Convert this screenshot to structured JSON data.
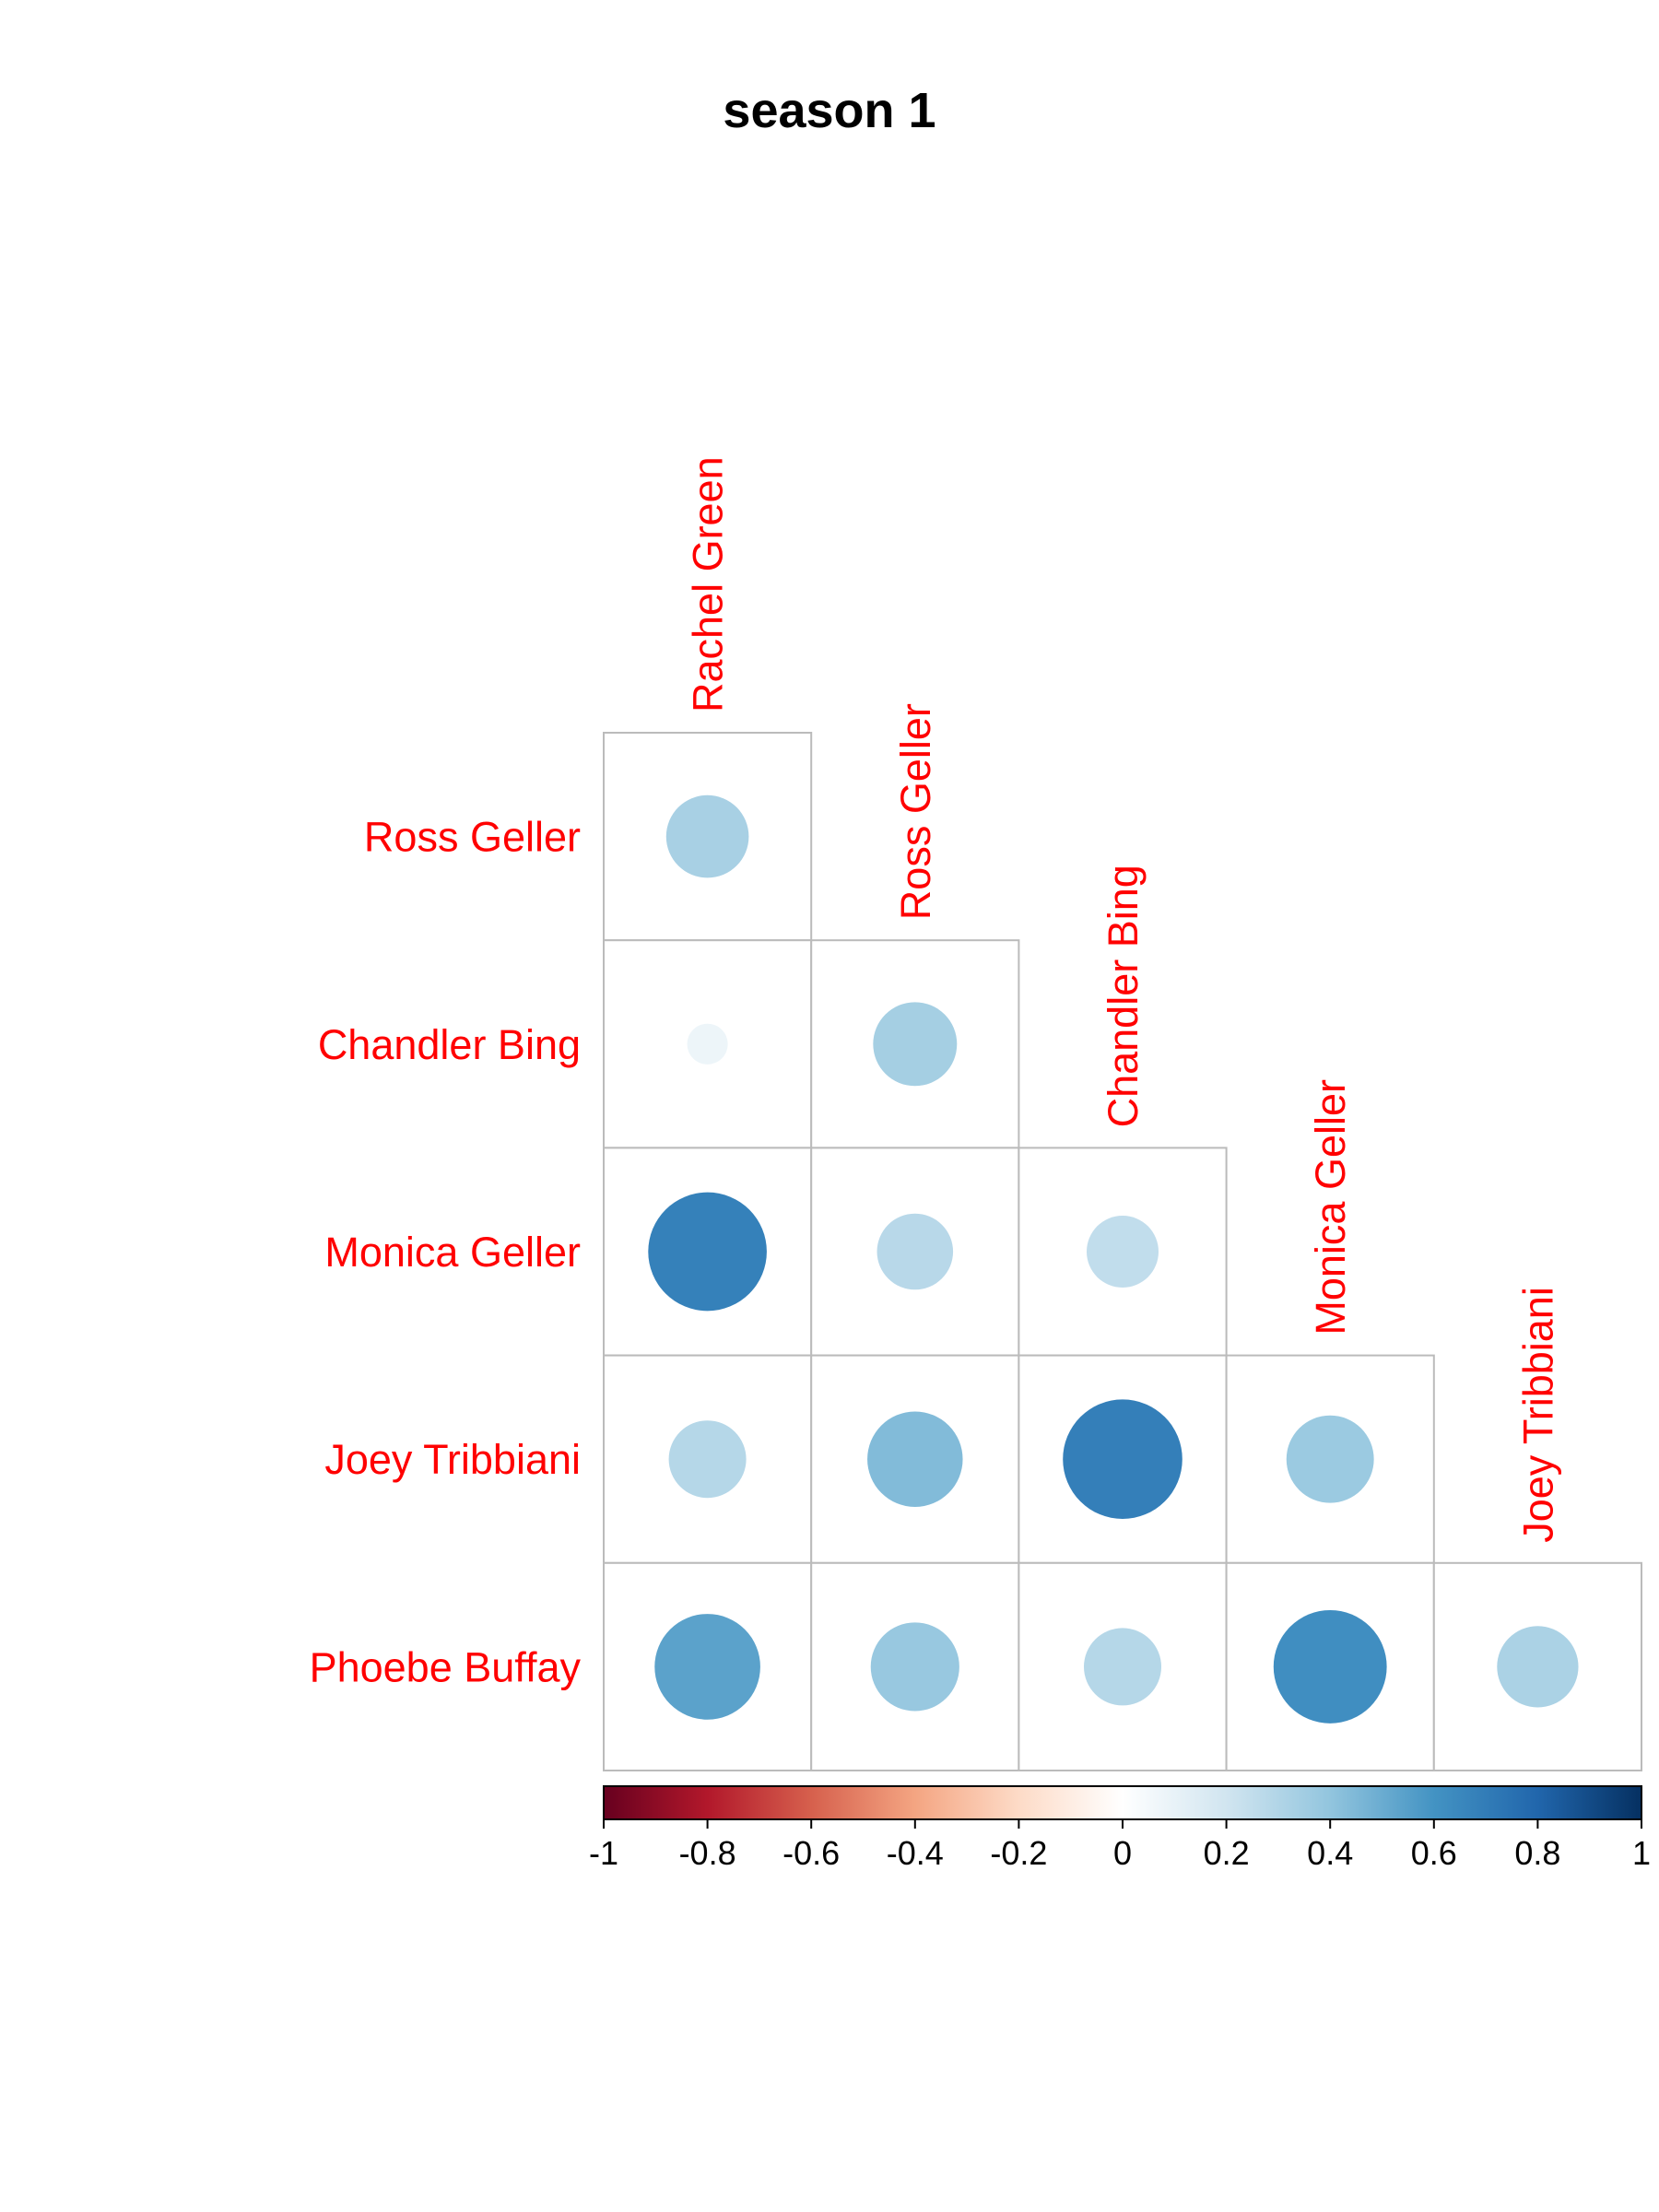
{
  "chart_data": {
    "type": "heatmap",
    "title": "season 1",
    "variables": [
      "Rachel Green",
      "Ross Geller",
      "Chandler Bing",
      "Monica Geller",
      "Joey Tribbiani",
      "Phoebe Buffay"
    ],
    "row_labels": [
      "Ross Geller",
      "Chandler Bing",
      "Monica Geller",
      "Joey Tribbiani",
      "Phoebe Buffay"
    ],
    "col_labels": [
      "Rachel Green",
      "Ross Geller",
      "Chandler Bing",
      "Monica Geller",
      "Joey Tribbiani"
    ],
    "matrix_lower": [
      [
        0.33
      ],
      [
        0.08,
        0.34
      ],
      [
        0.68,
        0.28,
        0.25
      ],
      [
        0.29,
        0.44,
        0.69,
        0.37
      ],
      [
        0.54,
        0.38,
        0.29,
        0.62,
        0.32
      ]
    ],
    "color_scale": {
      "range": [
        -1,
        1
      ],
      "ticks": [
        "-1",
        "-0.8",
        "-0.6",
        "-0.4",
        "-0.2",
        "0",
        "0.2",
        "0.4",
        "0.6",
        "0.8",
        "1"
      ],
      "colors": [
        "#67001F",
        "#B2182B",
        "#D6604D",
        "#F4A582",
        "#FDDBC7",
        "#FFFFFF",
        "#D1E5F0",
        "#92C5DE",
        "#4393C3",
        "#2166AC",
        "#053061"
      ]
    },
    "label_color": "#FF0000",
    "grid_color": "#BBBBBB",
    "layout": "lower-triangle",
    "legend_position": "bottom"
  }
}
